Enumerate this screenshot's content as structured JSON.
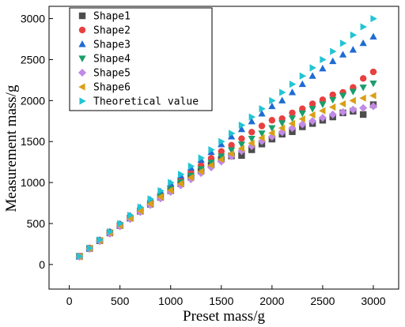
{
  "chart_data": {
    "type": "scatter",
    "title": "",
    "xlabel": "Preset mass/g",
    "ylabel": "Measurement mass/g",
    "xlim": [
      -200,
      3250
    ],
    "ylim": [
      -300,
      3150
    ],
    "xticks": [
      0,
      500,
      1000,
      1500,
      2000,
      2500,
      3000
    ],
    "yticks": [
      0,
      500,
      1000,
      1500,
      2000,
      2500,
      3000
    ],
    "grid": false,
    "legend_position": "top-left",
    "x": [
      100,
      200,
      300,
      400,
      500,
      600,
      700,
      800,
      900,
      1000,
      1100,
      1200,
      1300,
      1400,
      1500,
      1600,
      1700,
      1800,
      1900,
      2000,
      2100,
      2200,
      2300,
      2400,
      2500,
      2600,
      2700,
      2800,
      2900,
      3000
    ],
    "series": [
      {
        "name": "Shape1",
        "marker": "square",
        "color": "#4d4d4d",
        "values": [
          100,
          195,
          290,
          385,
          475,
          565,
          650,
          735,
          820,
          900,
          985,
          1065,
          1140,
          1215,
          1285,
          1325,
          1330,
          1400,
          1470,
          1530,
          1590,
          1620,
          1680,
          1720,
          1760,
          1800,
          1850,
          1870,
          1830,
          1950
        ]
      },
      {
        "name": "Shape2",
        "marker": "circle",
        "color": "#e84040",
        "values": [
          100,
          200,
          295,
          395,
          490,
          585,
          680,
          770,
          860,
          950,
          1040,
          1125,
          1210,
          1295,
          1380,
          1455,
          1535,
          1615,
          1690,
          1760,
          1780,
          1850,
          1900,
          1960,
          2010,
          2070,
          2100,
          2160,
          2270,
          2350
        ]
      },
      {
        "name": "Shape3",
        "marker": "triangle-up",
        "color": "#1f6bd4",
        "values": [
          100,
          200,
          300,
          400,
          495,
          595,
          695,
          790,
          890,
          990,
          1085,
          1180,
          1275,
          1370,
          1465,
          1560,
          1650,
          1745,
          1840,
          1930,
          2000,
          2100,
          2200,
          2300,
          2390,
          2480,
          2560,
          2620,
          2700,
          2780
        ]
      },
      {
        "name": "Shape4",
        "marker": "triangle-down",
        "color": "#1a9e6c",
        "values": [
          95,
          195,
          290,
          385,
          480,
          570,
          660,
          750,
          835,
          920,
          1005,
          1085,
          1165,
          1245,
          1320,
          1395,
          1465,
          1535,
          1600,
          1665,
          1725,
          1785,
          1845,
          1900,
          1955,
          2010,
          2060,
          2110,
          2160,
          2210
        ]
      },
      {
        "name": "Shape5",
        "marker": "diamond",
        "color": "#c08ae6",
        "values": [
          95,
          190,
          285,
          375,
          465,
          555,
          640,
          725,
          805,
          885,
          965,
          1040,
          1115,
          1185,
          1255,
          1320,
          1385,
          1445,
          1505,
          1560,
          1615,
          1665,
          1710,
          1750,
          1790,
          1830,
          1860,
          1890,
          1910,
          1930
        ]
      },
      {
        "name": "Shape6",
        "marker": "triangle-left",
        "color": "#d9a016",
        "values": [
          95,
          195,
          290,
          385,
          475,
          565,
          655,
          740,
          825,
          905,
          985,
          1060,
          1135,
          1210,
          1280,
          1350,
          1415,
          1480,
          1545,
          1605,
          1665,
          1720,
          1775,
          1825,
          1875,
          1920,
          1960,
          2000,
          2030,
          2060
        ]
      },
      {
        "name": "Theoretical value",
        "marker": "triangle-right",
        "color": "#22c4d4",
        "values": [
          100,
          200,
          300,
          400,
          500,
          600,
          700,
          800,
          900,
          1000,
          1100,
          1200,
          1300,
          1400,
          1500,
          1600,
          1700,
          1800,
          1900,
          2000,
          2100,
          2200,
          2300,
          2400,
          2500,
          2600,
          2700,
          2800,
          2900,
          3000
        ]
      }
    ]
  }
}
